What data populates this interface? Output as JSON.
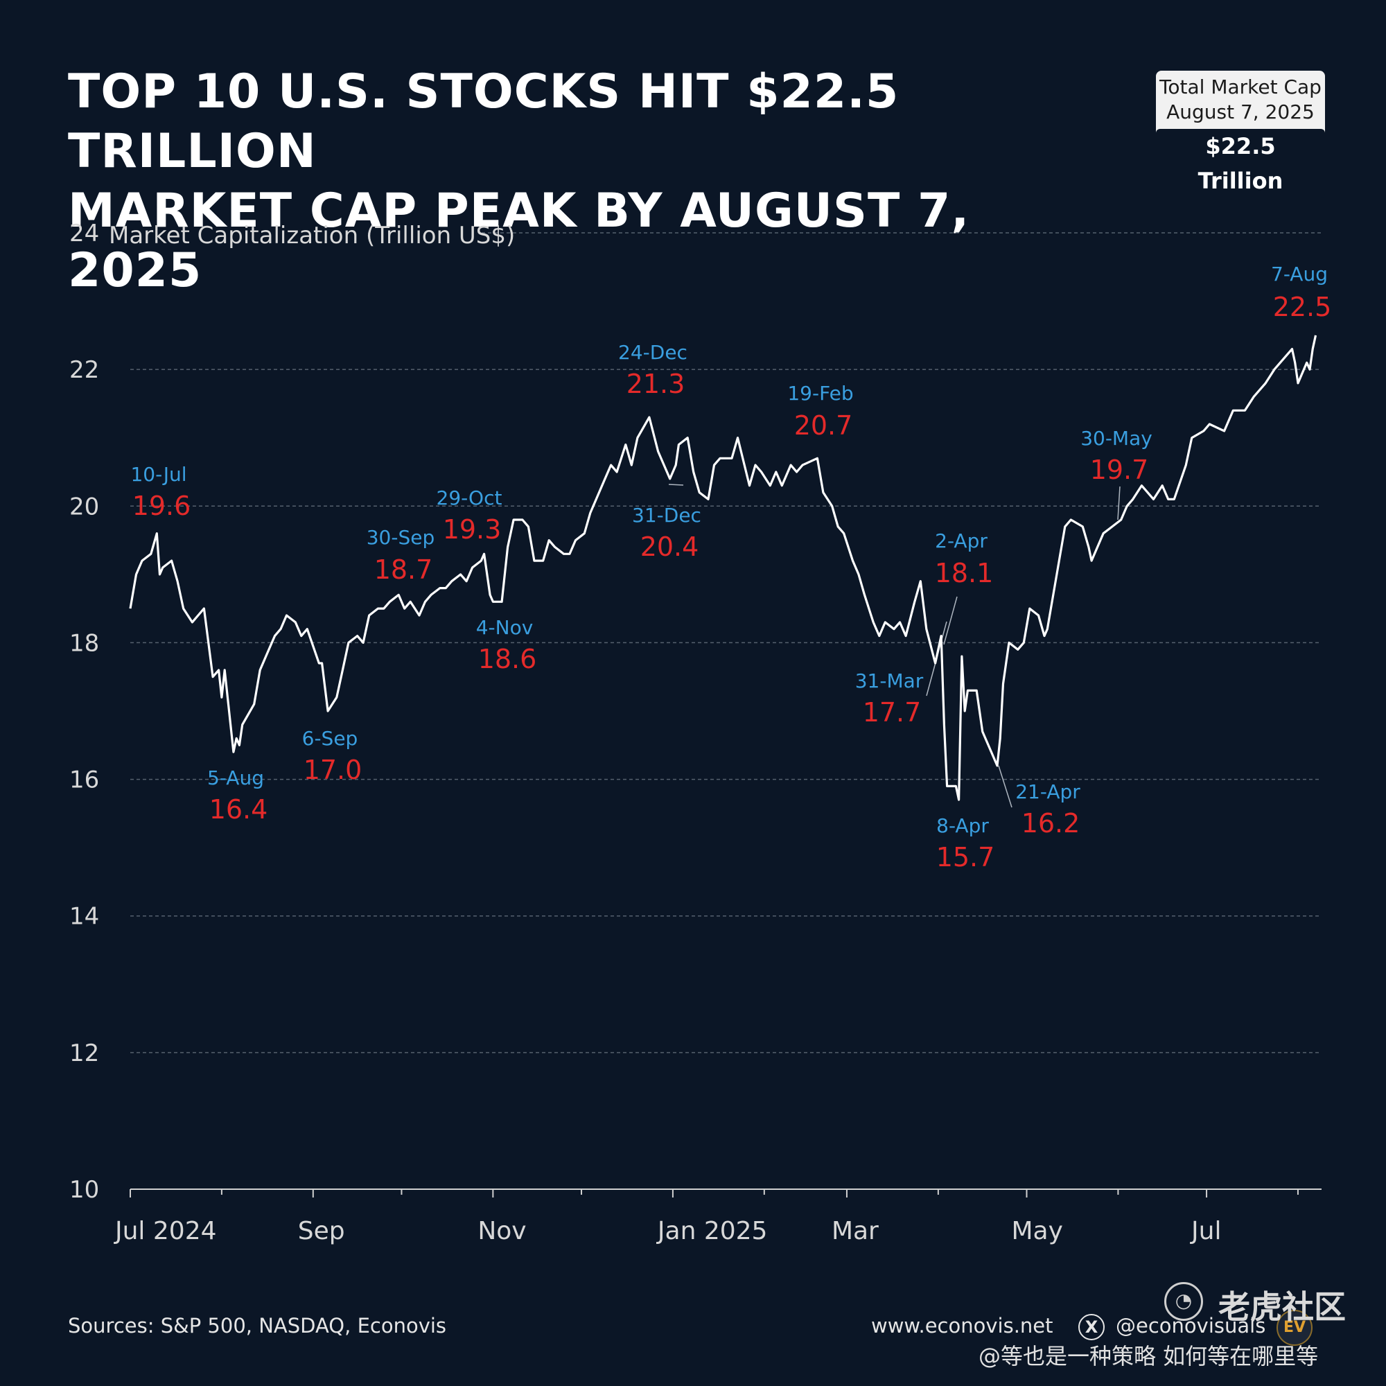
{
  "title_lines": [
    "TOP 10 U.S. STOCKS HIT $22.5 TRILLION",
    "MARKET CAP PEAK BY AUGUST 7, 2025"
  ],
  "total_box": {
    "line1": "Total Market Cap",
    "line2": "August 7, 2025",
    "value": "$22.5 Trillion"
  },
  "footer": {
    "source": "Sources: S&P 500, NASDAQ, Econovis",
    "website": "www.econovis.net",
    "handle": "@econovisuals",
    "x_icon": "x-logo-icon",
    "ev_logo": "EV"
  },
  "watermark": {
    "brand": "老虎社区",
    "user": "@等也是一种策略 如何等在哪里等"
  },
  "colors": {
    "background": "#0b1626",
    "line": "#ffffff",
    "date_label": "#3a9fe0",
    "value_label": "#e42a2a",
    "grid": "#55606e",
    "tick_text": "#d8d8d8"
  },
  "chart_data": {
    "type": "line",
    "ylabel": "Market Capitalization (Trillion US$)",
    "ylim": [
      10,
      24
    ],
    "yticks": [
      10,
      12,
      14,
      16,
      18,
      20,
      22,
      24
    ],
    "xlim": [
      "2024-07-01",
      "2025-08-09"
    ],
    "xtick_labels": [
      {
        "date": "2024-07-01",
        "label": "Jul  2024"
      },
      {
        "date": "2024-09-01",
        "label": "Sep"
      },
      {
        "date": "2024-11-01",
        "label": "Nov"
      },
      {
        "date": "2025-01-01",
        "label": "Jan 2025"
      },
      {
        "date": "2025-03-01",
        "label": "Mar"
      },
      {
        "date": "2025-05-01",
        "label": "May"
      },
      {
        "date": "2025-07-01",
        "label": "Jul"
      }
    ],
    "minor_ticks": [
      "2024-08-01",
      "2024-10-01",
      "2024-12-01",
      "2025-02-01",
      "2025-04-01",
      "2025-06-01",
      "2025-08-01"
    ],
    "grid": true,
    "series": [
      {
        "points": [
          [
            "2024-07-01",
            18.5
          ],
          [
            "2024-07-03",
            19.0
          ],
          [
            "2024-07-05",
            19.2
          ],
          [
            "2024-07-08",
            19.3
          ],
          [
            "2024-07-10",
            19.6
          ],
          [
            "2024-07-11",
            19.0
          ],
          [
            "2024-07-12",
            19.1
          ],
          [
            "2024-07-15",
            19.2
          ],
          [
            "2024-07-17",
            18.9
          ],
          [
            "2024-07-19",
            18.5
          ],
          [
            "2024-07-22",
            18.3
          ],
          [
            "2024-07-24",
            18.4
          ],
          [
            "2024-07-26",
            18.5
          ],
          [
            "2024-07-29",
            17.5
          ],
          [
            "2024-07-31",
            17.6
          ],
          [
            "2024-08-01",
            17.2
          ],
          [
            "2024-08-02",
            17.6
          ],
          [
            "2024-08-05",
            16.4
          ],
          [
            "2024-08-06",
            16.6
          ],
          [
            "2024-08-07",
            16.5
          ],
          [
            "2024-08-08",
            16.8
          ],
          [
            "2024-08-12",
            17.1
          ],
          [
            "2024-08-14",
            17.6
          ],
          [
            "2024-08-16",
            17.8
          ],
          [
            "2024-08-19",
            18.1
          ],
          [
            "2024-08-21",
            18.2
          ],
          [
            "2024-08-23",
            18.4
          ],
          [
            "2024-08-26",
            18.3
          ],
          [
            "2024-08-28",
            18.1
          ],
          [
            "2024-08-30",
            18.2
          ],
          [
            "2024-09-03",
            17.7
          ],
          [
            "2024-09-04",
            17.7
          ],
          [
            "2024-09-06",
            17.0
          ],
          [
            "2024-09-09",
            17.2
          ],
          [
            "2024-09-11",
            17.6
          ],
          [
            "2024-09-13",
            18.0
          ],
          [
            "2024-09-16",
            18.1
          ],
          [
            "2024-09-18",
            18.0
          ],
          [
            "2024-09-20",
            18.4
          ],
          [
            "2024-09-23",
            18.5
          ],
          [
            "2024-09-25",
            18.5
          ],
          [
            "2024-09-27",
            18.6
          ],
          [
            "2024-09-30",
            18.7
          ],
          [
            "2024-10-02",
            18.5
          ],
          [
            "2024-10-04",
            18.6
          ],
          [
            "2024-10-07",
            18.4
          ],
          [
            "2024-10-09",
            18.6
          ],
          [
            "2024-10-11",
            18.7
          ],
          [
            "2024-10-14",
            18.8
          ],
          [
            "2024-10-16",
            18.8
          ],
          [
            "2024-10-18",
            18.9
          ],
          [
            "2024-10-21",
            19.0
          ],
          [
            "2024-10-23",
            18.9
          ],
          [
            "2024-10-25",
            19.1
          ],
          [
            "2024-10-28",
            19.2
          ],
          [
            "2024-10-29",
            19.3
          ],
          [
            "2024-10-31",
            18.7
          ],
          [
            "2024-11-01",
            18.6
          ],
          [
            "2024-11-04",
            18.6
          ],
          [
            "2024-11-06",
            19.4
          ],
          [
            "2024-11-08",
            19.8
          ],
          [
            "2024-11-11",
            19.8
          ],
          [
            "2024-11-13",
            19.7
          ],
          [
            "2024-11-15",
            19.2
          ],
          [
            "2024-11-18",
            19.2
          ],
          [
            "2024-11-20",
            19.5
          ],
          [
            "2024-11-22",
            19.4
          ],
          [
            "2024-11-25",
            19.3
          ],
          [
            "2024-11-27",
            19.3
          ],
          [
            "2024-11-29",
            19.5
          ],
          [
            "2024-12-02",
            19.6
          ],
          [
            "2024-12-04",
            19.9
          ],
          [
            "2024-12-06",
            20.1
          ],
          [
            "2024-12-09",
            20.4
          ],
          [
            "2024-12-11",
            20.6
          ],
          [
            "2024-12-13",
            20.5
          ],
          [
            "2024-12-16",
            20.9
          ],
          [
            "2024-12-18",
            20.6
          ],
          [
            "2024-12-20",
            21.0
          ],
          [
            "2024-12-24",
            21.3
          ],
          [
            "2024-12-27",
            20.8
          ],
          [
            "2024-12-31",
            20.4
          ],
          [
            "2025-01-02",
            20.6
          ],
          [
            "2025-01-03",
            20.9
          ],
          [
            "2025-01-06",
            21.0
          ],
          [
            "2025-01-08",
            20.5
          ],
          [
            "2025-01-10",
            20.2
          ],
          [
            "2025-01-13",
            20.1
          ],
          [
            "2025-01-15",
            20.6
          ],
          [
            "2025-01-17",
            20.7
          ],
          [
            "2025-01-21",
            20.7
          ],
          [
            "2025-01-23",
            21.0
          ],
          [
            "2025-01-27",
            20.3
          ],
          [
            "2025-01-29",
            20.6
          ],
          [
            "2025-01-31",
            20.5
          ],
          [
            "2025-02-03",
            20.3
          ],
          [
            "2025-02-05",
            20.5
          ],
          [
            "2025-02-07",
            20.3
          ],
          [
            "2025-02-10",
            20.6
          ],
          [
            "2025-02-12",
            20.5
          ],
          [
            "2025-02-14",
            20.6
          ],
          [
            "2025-02-19",
            20.7
          ],
          [
            "2025-02-21",
            20.2
          ],
          [
            "2025-02-24",
            20.0
          ],
          [
            "2025-02-26",
            19.7
          ],
          [
            "2025-02-28",
            19.6
          ],
          [
            "2025-03-03",
            19.2
          ],
          [
            "2025-03-05",
            19.0
          ],
          [
            "2025-03-07",
            18.7
          ],
          [
            "2025-03-10",
            18.3
          ],
          [
            "2025-03-12",
            18.1
          ],
          [
            "2025-03-14",
            18.3
          ],
          [
            "2025-03-17",
            18.2
          ],
          [
            "2025-03-19",
            18.3
          ],
          [
            "2025-03-21",
            18.1
          ],
          [
            "2025-03-24",
            18.6
          ],
          [
            "2025-03-26",
            18.9
          ],
          [
            "2025-03-28",
            18.2
          ],
          [
            "2025-03-31",
            17.7
          ],
          [
            "2025-04-02",
            18.1
          ],
          [
            "2025-04-03",
            16.8
          ],
          [
            "2025-04-04",
            15.9
          ],
          [
            "2025-04-07",
            15.9
          ],
          [
            "2025-04-08",
            15.7
          ],
          [
            "2025-04-09",
            17.8
          ],
          [
            "2025-04-10",
            17.0
          ],
          [
            "2025-04-11",
            17.3
          ],
          [
            "2025-04-14",
            17.3
          ],
          [
            "2025-04-16",
            16.7
          ],
          [
            "2025-04-17",
            16.6
          ],
          [
            "2025-04-21",
            16.2
          ],
          [
            "2025-04-22",
            16.6
          ],
          [
            "2025-04-23",
            17.4
          ],
          [
            "2025-04-25",
            18.0
          ],
          [
            "2025-04-28",
            17.9
          ],
          [
            "2025-04-30",
            18.0
          ],
          [
            "2025-05-02",
            18.5
          ],
          [
            "2025-05-05",
            18.4
          ],
          [
            "2025-05-07",
            18.1
          ],
          [
            "2025-05-08",
            18.2
          ],
          [
            "2025-05-12",
            19.2
          ],
          [
            "2025-05-14",
            19.7
          ],
          [
            "2025-05-16",
            19.8
          ],
          [
            "2025-05-20",
            19.7
          ],
          [
            "2025-05-22",
            19.4
          ],
          [
            "2025-05-23",
            19.2
          ],
          [
            "2025-05-27",
            19.6
          ],
          [
            "2025-05-30",
            19.7
          ],
          [
            "2025-06-02",
            19.8
          ],
          [
            "2025-06-04",
            20.0
          ],
          [
            "2025-06-06",
            20.1
          ],
          [
            "2025-06-09",
            20.3
          ],
          [
            "2025-06-11",
            20.2
          ],
          [
            "2025-06-13",
            20.1
          ],
          [
            "2025-06-16",
            20.3
          ],
          [
            "2025-06-18",
            20.1
          ],
          [
            "2025-06-20",
            20.1
          ],
          [
            "2025-06-24",
            20.6
          ],
          [
            "2025-06-26",
            21.0
          ],
          [
            "2025-06-30",
            21.1
          ],
          [
            "2025-07-02",
            21.2
          ],
          [
            "2025-07-07",
            21.1
          ],
          [
            "2025-07-10",
            21.4
          ],
          [
            "2025-07-14",
            21.4
          ],
          [
            "2025-07-17",
            21.6
          ],
          [
            "2025-07-21",
            21.8
          ],
          [
            "2025-07-24",
            22.0
          ],
          [
            "2025-07-28",
            22.2
          ],
          [
            "2025-07-30",
            22.3
          ],
          [
            "2025-07-31",
            22.1
          ],
          [
            "2025-08-01",
            21.8
          ],
          [
            "2025-08-04",
            22.1
          ],
          [
            "2025-08-05",
            22.0
          ],
          [
            "2025-08-06",
            22.3
          ],
          [
            "2025-08-07",
            22.5
          ]
        ]
      }
    ],
    "annotations": [
      {
        "date_label": "10-Jul",
        "value_label": "19.6"
      },
      {
        "date_label": "5-Aug",
        "value_label": "16.4"
      },
      {
        "date_label": "6-Sep",
        "value_label": "17.0"
      },
      {
        "date_label": "30-Sep",
        "value_label": "18.7"
      },
      {
        "date_label": "29-Oct",
        "value_label": "19.3"
      },
      {
        "date_label": "4-Nov",
        "value_label": "18.6"
      },
      {
        "date_label": "24-Dec",
        "value_label": "21.3"
      },
      {
        "date_label": "31-Dec",
        "value_label": "20.4"
      },
      {
        "date_label": "19-Feb",
        "value_label": "20.7"
      },
      {
        "date_label": "31-Mar",
        "value_label": "17.7"
      },
      {
        "date_label": "2-Apr",
        "value_label": "18.1"
      },
      {
        "date_label": "8-Apr",
        "value_label": "15.7"
      },
      {
        "date_label": "21-Apr",
        "value_label": "16.2"
      },
      {
        "date_label": "30-May",
        "value_label": "19.7"
      },
      {
        "date_label": "7-Aug",
        "value_label": "22.5"
      }
    ]
  }
}
